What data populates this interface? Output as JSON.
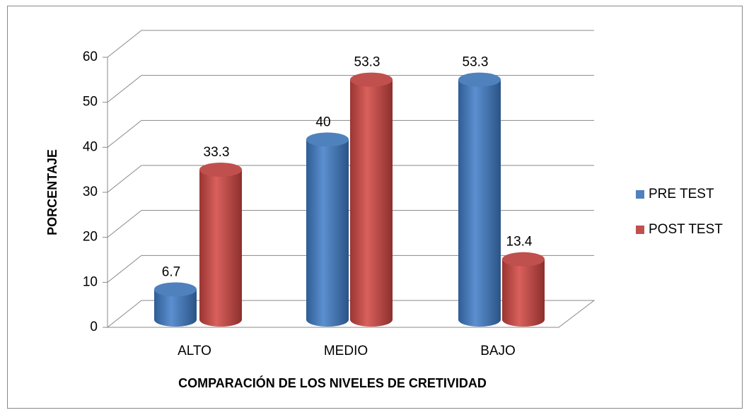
{
  "chart_data": {
    "type": "bar3d",
    "categories": [
      "ALTO",
      "MEDIO",
      "BAJO"
    ],
    "series": [
      {
        "name": "PRE TEST",
        "color": "#4f81bd",
        "values": [
          6.7,
          40,
          53.3
        ]
      },
      {
        "name": "POST TEST",
        "color": "#c0504d",
        "values": [
          33.3,
          53.3,
          13.4
        ]
      }
    ],
    "xlabel": "COMPARACIÓN DE LOS NIVELES DE CRETIVIDAD",
    "ylabel": "PORCENTAJE",
    "ylim": [
      0,
      60
    ],
    "yticks": [
      0,
      10,
      20,
      30,
      40,
      50,
      60
    ],
    "grid": true,
    "legend": "right"
  }
}
